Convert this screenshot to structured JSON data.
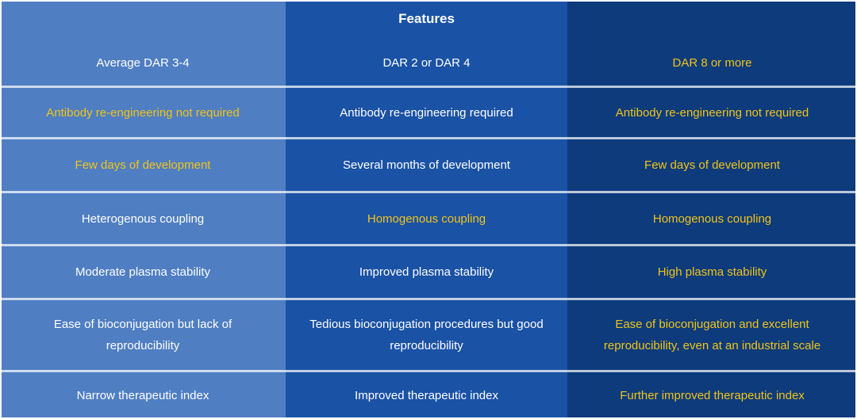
{
  "palette": {
    "col_a_bg": "#4F7EC2",
    "col_b_bg": "#1A52A5",
    "col_c_bg": "#0D3B7C",
    "white": "#FFFFFF",
    "yellow": "#F0C419"
  },
  "header": {
    "features_label": "Features"
  },
  "columns": {
    "a": {
      "header": {
        "text": "Average DAR 3-4",
        "color": "#FFFFFF"
      },
      "rows": [
        {
          "text": "Antibody re-engineering not required",
          "color": "#F0C419"
        },
        {
          "text": "Few days of development",
          "color": "#F0C419"
        },
        {
          "text": "Heterogenous coupling",
          "color": "#FFFFFF"
        },
        {
          "text": "Moderate plasma stability",
          "color": "#FFFFFF"
        },
        {
          "text": "Ease of bioconjugation but lack of reproducibility",
          "color": "#FFFFFF"
        },
        {
          "text": "Narrow therapeutic index",
          "color": "#FFFFFF"
        }
      ]
    },
    "b": {
      "header": {
        "text": "DAR 2 or DAR 4",
        "color": "#FFFFFF"
      },
      "rows": [
        {
          "text": "Antibody re-engineering required",
          "color": "#FFFFFF"
        },
        {
          "text": "Several months of development",
          "color": "#FFFFFF"
        },
        {
          "text": "Homogenous coupling",
          "color": "#F0C419"
        },
        {
          "text": "Improved plasma stability",
          "color": "#FFFFFF"
        },
        {
          "text": "Tedious bioconjugation procedures but good reproducibility",
          "color": "#FFFFFF"
        },
        {
          "text": "Improved therapeutic index",
          "color": "#FFFFFF"
        }
      ]
    },
    "c": {
      "header": {
        "text": "DAR 8 or more",
        "color": "#F0C419"
      },
      "rows": [
        {
          "text": "Antibody re-engineering not required",
          "color": "#F0C419"
        },
        {
          "text": "Few days of development",
          "color": "#F0C419"
        },
        {
          "text": "Homogenous coupling",
          "color": "#F0C419"
        },
        {
          "text": "High plasma stability",
          "color": "#F0C419"
        },
        {
          "text": "Ease of bioconjugation and excellent reproducibility, even at an industrial scale",
          "color": "#F0C419"
        },
        {
          "text": "Further improved therapeutic index",
          "color": "#F0C419"
        }
      ]
    }
  },
  "chart_data": {
    "type": "table",
    "title": "Features",
    "columns": [
      "Average DAR 3-4",
      "DAR 2 or DAR 4",
      "DAR 8 or more"
    ],
    "rows": [
      [
        "Antibody re-engineering not required",
        "Antibody re-engineering required",
        "Antibody re-engineering not required"
      ],
      [
        "Few days of development",
        "Several months of development",
        "Few days of development"
      ],
      [
        "Heterogenous coupling",
        "Homogenous coupling",
        "Homogenous coupling"
      ],
      [
        "Moderate plasma stability",
        "Improved plasma stability",
        "High plasma stability"
      ],
      [
        "Ease of bioconjugation but lack of reproducibility",
        "Tedious bioconjugation procedures but good reproducibility",
        "Ease of bioconjugation and excellent reproducibility, even at an industrial scale"
      ],
      [
        "Narrow therapeutic index",
        "Improved therapeutic index",
        "Further improved therapeutic index"
      ]
    ],
    "highlight_color": "#F0C419",
    "highlighted_cells": {
      "Average DAR 3-4": [
        "Antibody re-engineering not required",
        "Few days of development"
      ],
      "DAR 2 or DAR 4": [
        "Homogenous coupling"
      ],
      "DAR 8 or more": [
        "DAR 8 or more",
        "Antibody re-engineering not required",
        "Few days of development",
        "Homogenous coupling",
        "High plasma stability",
        "Ease of bioconjugation and excellent reproducibility, even at an industrial scale",
        "Further improved therapeutic index"
      ]
    },
    "legend_note": "Yellow text marks advantageous features; column backgrounds are three shades of blue (light, medium, dark)."
  }
}
